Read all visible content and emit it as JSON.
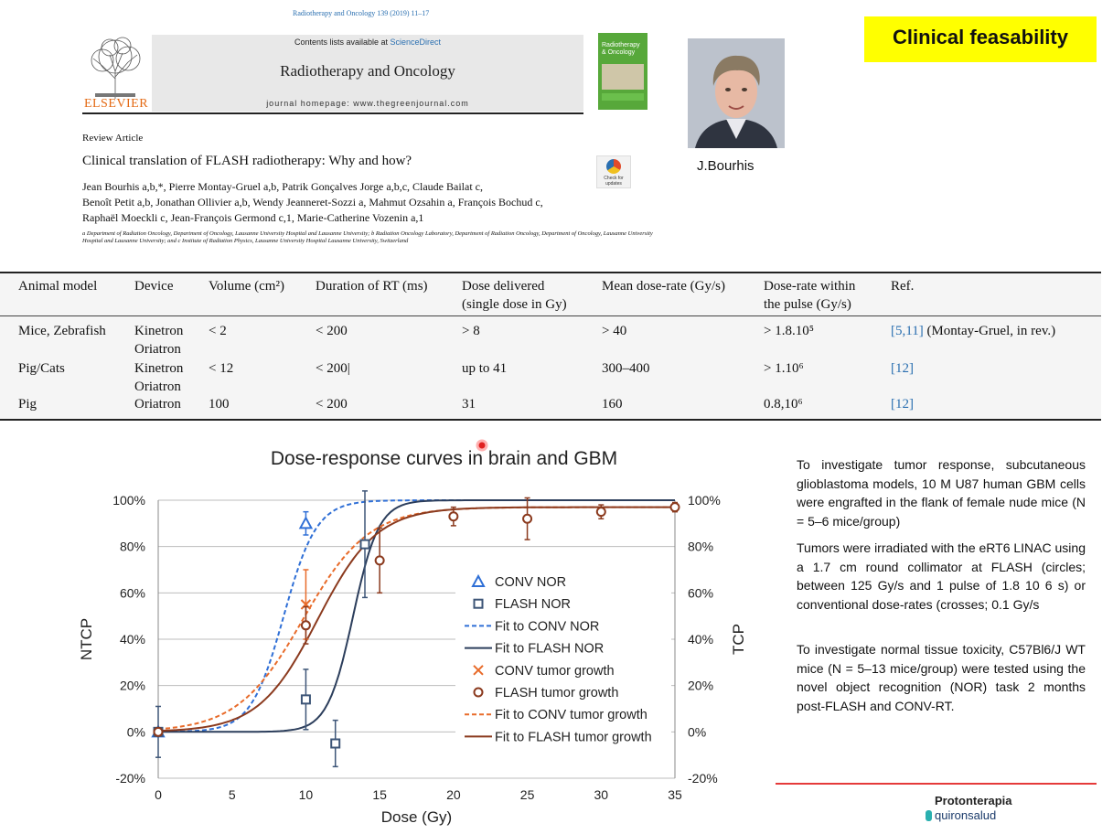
{
  "header": {
    "journal_ref": "Radiotherapy and Oncology 139 (2019) 11–17",
    "elsevier": "ELSEVIER",
    "contents_prefix": "Contents lists available at ",
    "contents_link": "ScienceDirect",
    "journal_title": "Radiotherapy and Oncology",
    "journal_homepage": "journal homepage: www.thegreenjournal.com",
    "cover_title": "Radiotherapy & Oncology"
  },
  "article": {
    "type": "Review Article",
    "title": "Clinical translation of FLASH radiotherapy: Why and how?",
    "check_updates": "Check for updates",
    "authors_line1": "Jean Bourhis a,b,*, Pierre Montay-Gruel a,b, Patrik Gonçalves Jorge a,b,c, Claude Bailat c,",
    "authors_line2": "Benoît Petit a,b, Jonathan Ollivier a,b, Wendy Jeanneret-Sozzi a, Mahmut Ozsahin a, François Bochud c,",
    "authors_line3": "Raphaël Moeckli c, Jean-François Germond c,1, Marie-Catherine Vozenin a,1",
    "affiliations": "a Department of Radiation Oncology, Department of Oncology, Lausanne University Hospital and Lausanne University; b Radiation Oncology Laboratory, Department of Radiation Oncology, Department of Oncology, Lausanne University Hospital and Lausanne University; and c Institute of Radiation Physics, Lausanne University Hospital Lausanne University, Switzerland"
  },
  "photo": {
    "name": "J.Bourhis"
  },
  "badge": {
    "text": "Clinical feasability",
    "color": "#ffff00"
  },
  "table": {
    "headers": [
      "Animal model",
      "Device",
      "Volume (cm²)",
      "Duration of RT (ms)",
      "Dose delivered",
      "Mean dose-rate (Gy/s)",
      "Dose-rate within",
      "Ref."
    ],
    "headers2": [
      "",
      "",
      "",
      "",
      "(single dose in Gy)",
      "",
      "the pulse (Gy/s)",
      ""
    ],
    "rows": [
      {
        "animal": "Mice, Zebrafish",
        "device": "Kinetron",
        "device2": "Oriatron",
        "volume": "< 2",
        "duration": "< 200",
        "dose": "> 8",
        "mean": "> 40",
        "pulse": "> 1.8.10⁵",
        "ref": "[5,11]",
        "ref_extra": " (Montay-Gruel, in rev.)"
      },
      {
        "animal": "Pig/Cats",
        "device": "Kinetron",
        "device2": "Oriatron",
        "volume": "< 12",
        "duration": "< 200|",
        "dose": "up to 41",
        "mean": "300–400",
        "pulse": "> 1.10⁶",
        "ref": "[12]",
        "ref_extra": ""
      },
      {
        "animal": "Pig",
        "device": "Oriatron",
        "device2": "",
        "volume": "100",
        "duration": "< 200",
        "dose": "31",
        "mean": "160",
        "pulse": "0.8,10⁶",
        "ref": "[12]",
        "ref_extra": ""
      }
    ]
  },
  "chart_data": {
    "type": "scatter",
    "title": "Dose-response curves in brain and GBM",
    "xlabel": "Dose (Gy)",
    "ylabel": "NTCP",
    "y2label": "TCP",
    "xlim": [
      0,
      35
    ],
    "ylim": [
      -20,
      100
    ],
    "x_ticks": [
      "0",
      "5",
      "10",
      "15",
      "20",
      "25",
      "30",
      "35"
    ],
    "y_ticks": [
      "-20%",
      "0%",
      "20%",
      "40%",
      "60%",
      "80%",
      "100%"
    ],
    "y2_ticks": [
      "-20%",
      "0%",
      "20%",
      "40%",
      "60%",
      "80%",
      "100%"
    ],
    "grid": true,
    "legend_position": "center-right",
    "series": [
      {
        "name": "CONV NOR",
        "kind": "triangle",
        "color": "#2f6fd6",
        "points": [
          {
            "x": 0,
            "y": 0,
            "err": 0
          },
          {
            "x": 10,
            "y": 90,
            "err": 5
          }
        ]
      },
      {
        "name": "FLASH NOR",
        "kind": "square",
        "color": "#3d5577",
        "points": [
          {
            "x": 0,
            "y": 0,
            "err": 11
          },
          {
            "x": 10,
            "y": 14,
            "err": 13
          },
          {
            "x": 12,
            "y": -5,
            "err": 10
          },
          {
            "x": 14,
            "y": 81,
            "err": 23
          }
        ]
      },
      {
        "name": "Fit to CONV NOR",
        "kind": "fit-dashed",
        "color": "#2f6fd6",
        "d50": 8.5,
        "k": 0.9
      },
      {
        "name": "Fit to FLASH NOR",
        "kind": "fit-solid",
        "color": "#2c3e5c",
        "d50": 13.2,
        "k": 1.15
      },
      {
        "name": "CONV tumor growth",
        "kind": "cross",
        "color": "#e86b2a",
        "points": [
          {
            "x": 10,
            "y": 55,
            "err": 15
          }
        ]
      },
      {
        "name": "FLASH tumor growth",
        "kind": "circle",
        "color": "#8b3a1e",
        "points": [
          {
            "x": 0,
            "y": 0,
            "err": 0
          },
          {
            "x": 10,
            "y": 46,
            "err": 8
          },
          {
            "x": 15,
            "y": 74,
            "err": 14
          },
          {
            "x": 20,
            "y": 93,
            "err": 4
          },
          {
            "x": 25,
            "y": 92,
            "err": 9
          },
          {
            "x": 30,
            "y": 95,
            "err": 3
          },
          {
            "x": 35,
            "y": 97,
            "err": 2
          }
        ]
      },
      {
        "name": "Fit to CONV tumor growth",
        "kind": "fit-dashed",
        "color": "#e86b2a",
        "d50": 9.8,
        "k": 0.45,
        "max": 97
      },
      {
        "name": "Fit to FLASH tumor growth",
        "kind": "fit-solid",
        "color": "#8b3a1e",
        "d50": 10.8,
        "k": 0.5,
        "max": 97
      }
    ]
  },
  "notes": {
    "p1": "To investigate tumor response, subcutaneous glioblastoma models, 10 M U87 human GBM cells were engrafted in the flank of female nude mice (N = 5–6 mice/group)",
    "p2": "Tumors were irradiated with the eRT6 LINAC using a 1.7 cm round collimator at FLASH (circles; between 125 Gy/s and 1 pulse of 1.8 10 6 s) or conventional dose-rates (crosses; 0.1 Gy/s",
    "p3": "To investigate normal tissue toxicity, C57Bl6/J WT mice (N = 5–13 mice/group) were tested using the novel object recognition (NOR) task 2 months post-FLASH and CONV-RT."
  },
  "logo": {
    "line1": "Protonterapia",
    "line2": "quironsalud"
  }
}
